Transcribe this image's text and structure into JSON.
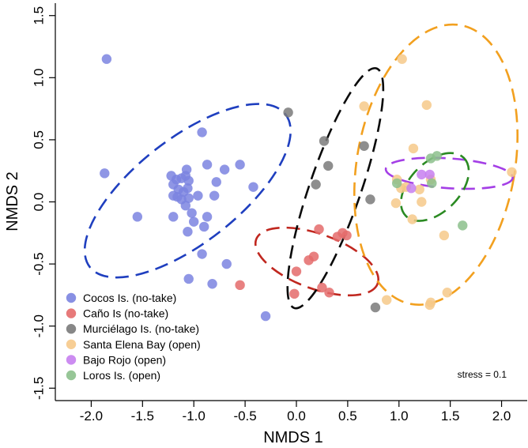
{
  "chart_data": {
    "type": "scatter",
    "xlabel": "NMDS 1",
    "ylabel": "NMDS 2",
    "xlim": [
      -2.35,
      2.25
    ],
    "ylim": [
      -1.6,
      1.6
    ],
    "xticks": [
      -2.0,
      -1.5,
      -1.0,
      -0.5,
      0.0,
      0.5,
      1.0,
      1.5,
      2.0
    ],
    "xtick_labels": [
      "-2.0",
      "-1.5",
      "-1.0",
      "-0.5",
      "0.0",
      "0.5",
      "1.0",
      "1.5",
      "2.0"
    ],
    "yticks": [
      -1.5,
      -1.0,
      -0.5,
      0.0,
      0.5,
      1.0,
      1.5
    ],
    "ytick_labels": [
      "-1.5",
      "-1.0",
      "-0.5",
      "0.0",
      "0.5",
      "1.0",
      "1.5"
    ],
    "annotation": "stress = 0.1",
    "legend_position": "bottom-left",
    "series": [
      {
        "name": "Cocos Is. (no-take)",
        "color": "#7b84e0",
        "ellipse_color": "#1f3fbf",
        "ellipse": {
          "cx": -1.06,
          "cy": 0.09,
          "rx": 1.21,
          "ry": 0.42,
          "angle_deg": -38
        },
        "points": [
          [
            -1.85,
            1.15
          ],
          [
            -1.87,
            0.23
          ],
          [
            -1.55,
            -0.12
          ],
          [
            -1.22,
            0.21
          ],
          [
            -1.17,
            0.18
          ],
          [
            -1.12,
            0.19
          ],
          [
            -1.08,
            0.21
          ],
          [
            -1.05,
            0.17
          ],
          [
            -1.2,
            0.14
          ],
          [
            -1.15,
            0.1
          ],
          [
            -1.1,
            0.08
          ],
          [
            -1.06,
            0.11
          ],
          [
            -1.2,
            0.05
          ],
          [
            -1.16,
            0.04
          ],
          [
            -1.12,
            0.02
          ],
          [
            -1.05,
            0.03
          ],
          [
            -1.07,
            0.26
          ],
          [
            -0.92,
            0.56
          ],
          [
            -0.87,
            0.3
          ],
          [
            -0.7,
            0.26
          ],
          [
            -0.55,
            0.3
          ],
          [
            -0.42,
            0.12
          ],
          [
            -0.78,
            0.16
          ],
          [
            -0.8,
            0.05
          ],
          [
            -0.96,
            0.05
          ],
          [
            -1.08,
            -0.03
          ],
          [
            -1.02,
            -0.09
          ],
          [
            -1.2,
            -0.12
          ],
          [
            -1.0,
            -0.16
          ],
          [
            -0.87,
            -0.12
          ],
          [
            -1.06,
            -0.24
          ],
          [
            -0.9,
            -0.2
          ],
          [
            -0.92,
            -0.42
          ],
          [
            -0.68,
            -0.5
          ],
          [
            -1.05,
            -0.62
          ],
          [
            -0.82,
            -0.66
          ],
          [
            -0.3,
            -0.92
          ]
        ]
      },
      {
        "name": "Caño Is (no-take)",
        "color": "#e46b6b",
        "ellipse_color": "#c0271f",
        "ellipse": {
          "cx": 0.2,
          "cy": -0.48,
          "rx": 0.63,
          "ry": 0.22,
          "angle_deg": 20
        },
        "points": [
          [
            -0.55,
            -0.67
          ],
          [
            -0.02,
            -0.74
          ],
          [
            0.0,
            -0.56
          ],
          [
            0.12,
            -0.47
          ],
          [
            0.17,
            -0.44
          ],
          [
            0.22,
            -0.22
          ],
          [
            0.25,
            -0.69
          ],
          [
            0.32,
            -0.73
          ],
          [
            0.4,
            -0.28
          ],
          [
            0.45,
            -0.25
          ],
          [
            0.49,
            -0.27
          ]
        ]
      },
      {
        "name": "Murciélago Is. (no-take)",
        "color": "#7a7a7a",
        "ellipse_color": "#0a0a0a",
        "ellipse": {
          "cx": 0.38,
          "cy": 0.11,
          "rx": 0.25,
          "ry": 1.02,
          "angle_deg": 19
        },
        "points": [
          [
            -0.08,
            0.72
          ],
          [
            0.27,
            0.49
          ],
          [
            0.31,
            0.29
          ],
          [
            0.19,
            0.14
          ],
          [
            0.66,
            0.45
          ],
          [
            0.72,
            0.02
          ],
          [
            0.77,
            -0.85
          ]
        ]
      },
      {
        "name": "Santa Elena Bay (open)",
        "color": "#f6c98a",
        "ellipse_color": "#f2a01f",
        "ellipse": {
          "cx": 1.36,
          "cy": 0.3,
          "rx": 0.77,
          "ry": 1.14,
          "angle_deg": 10
        },
        "points": [
          [
            1.03,
            1.15
          ],
          [
            0.66,
            0.77
          ],
          [
            1.27,
            0.78
          ],
          [
            1.14,
            0.43
          ],
          [
            0.98,
            0.18
          ],
          [
            1.02,
            0.11
          ],
          [
            1.07,
            0.12
          ],
          [
            1.2,
            0.1
          ],
          [
            0.97,
            -0.01
          ],
          [
            1.13,
            -0.14
          ],
          [
            1.22,
            0.0
          ],
          [
            1.31,
            0.18
          ],
          [
            1.44,
            -0.27
          ],
          [
            0.88,
            -0.79
          ],
          [
            1.3,
            -0.83
          ],
          [
            1.31,
            -0.81
          ],
          [
            1.47,
            -0.73
          ],
          [
            2.1,
            0.24
          ]
        ]
      },
      {
        "name": "Bajo Rojo (open)",
        "color": "#c77ff0",
        "ellipse_color": "#a43fe6",
        "ellipse": {
          "cx": 1.49,
          "cy": 0.23,
          "rx": 0.62,
          "ry": 0.12,
          "angle_deg": 4
        },
        "points": [
          [
            1.12,
            0.11
          ],
          [
            1.22,
            0.22
          ],
          [
            1.3,
            0.22
          ]
        ]
      },
      {
        "name": "Loros Is. (open)",
        "color": "#8cc08c",
        "ellipse_color": "#2a8a22",
        "ellipse": {
          "cx": 1.35,
          "cy": 0.12,
          "rx": 0.4,
          "ry": 0.2,
          "angle_deg": -45
        },
        "points": [
          [
            0.98,
            0.15
          ],
          [
            1.31,
            0.35
          ],
          [
            1.37,
            0.37
          ],
          [
            1.32,
            0.15
          ],
          [
            1.62,
            -0.19
          ]
        ]
      }
    ]
  }
}
